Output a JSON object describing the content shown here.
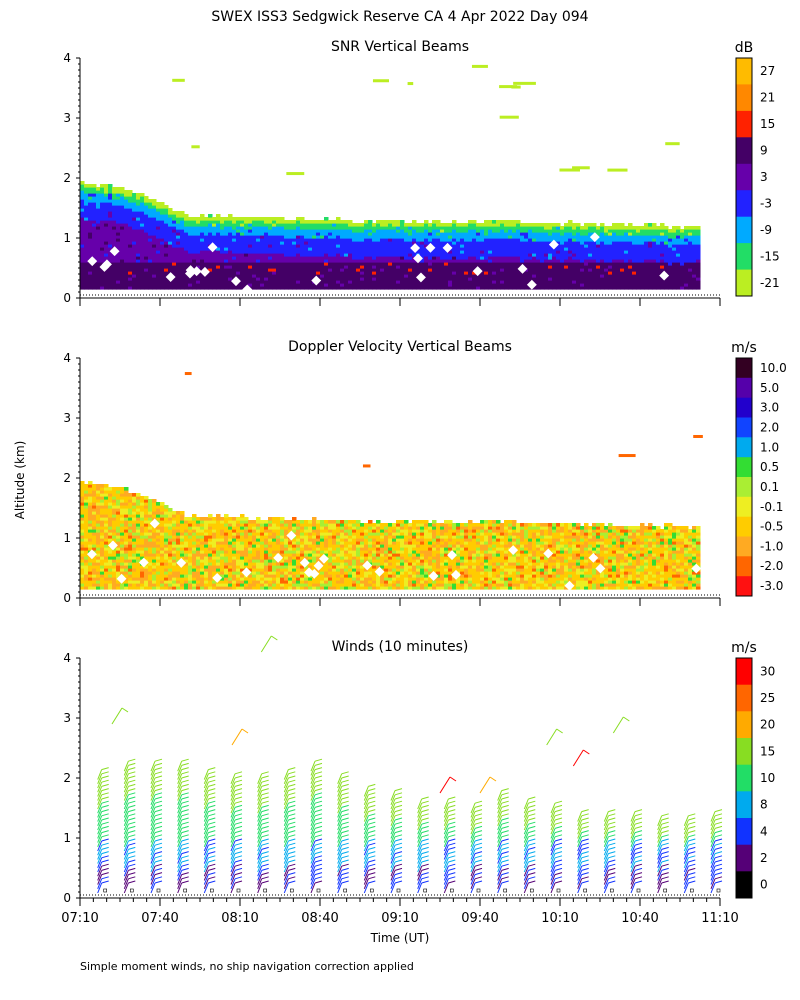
{
  "title": "SWEX ISS3 Sedgwick Reserve CA   4 Apr 2022 Day 094",
  "ylabel": "Altitude (km)",
  "xlabel": "Time (UT)",
  "footnote": "Simple moment winds, no ship navigation correction applied",
  "x_ticks": [
    "07:10",
    "07:40",
    "08:10",
    "08:40",
    "09:10",
    "09:40",
    "10:10",
    "10:40",
    "11:10"
  ],
  "y_ticks": [
    "0",
    "1",
    "2",
    "3",
    "4"
  ],
  "chart_data": [
    {
      "type": "heatmap",
      "title": "SNR Vertical Beams",
      "colorbar_unit": "dB",
      "colorbar_labels": [
        "27",
        "21",
        "15",
        "9",
        "3",
        "-3",
        "-9",
        "-15",
        "-21"
      ],
      "colorbar_colors": [
        "#ffbb00",
        "#ff8800",
        "#ff2200",
        "#440066",
        "#6600aa",
        "#2222ff",
        "#00aaff",
        "#22dd66",
        "#bbee22"
      ],
      "xlim": [
        "07:10",
        "11:10"
      ],
      "ylim": [
        0,
        4
      ],
      "top_km": [
        [
          0,
          1.9
        ],
        [
          10,
          1.85
        ],
        [
          20,
          1.75
        ],
        [
          40,
          1.35
        ],
        [
          80,
          1.3
        ],
        [
          120,
          1.25
        ],
        [
          160,
          1.25
        ],
        [
          200,
          1.2
        ],
        [
          240,
          1.15
        ]
      ],
      "regions": [
        {
          "layer": "-21 to -15",
          "top_offset_km": 0.0
        },
        {
          "layer": "-15 to -9",
          "top_offset_km": -0.08
        },
        {
          "layer": "-9 to -3",
          "top_offset_km": -0.2
        },
        {
          "layer": "-3 to 3",
          "top_offset_km": -0.35
        },
        {
          "layer": "3 to 9",
          "top_offset_km": -0.75
        },
        {
          "layer": "9 to 15",
          "top_offset_km": -0.95
        }
      ]
    },
    {
      "type": "heatmap",
      "title": "Doppler Velocity Vertical Beams",
      "colorbar_unit": "m/s",
      "colorbar_labels": [
        "10.0",
        "5.0",
        "3.0",
        "2.0",
        "1.0",
        "0.5",
        "0.1",
        "-0.1",
        "-0.5",
        "-1.0",
        "-2.0",
        "-3.0"
      ],
      "colorbar_colors": [
        "#330022",
        "#5500aa",
        "#2200cc",
        "#1144ff",
        "#00aaee",
        "#33dd33",
        "#aaee33",
        "#eeee22",
        "#ffcc00",
        "#ffaa22",
        "#ff6600",
        "#ff1111"
      ],
      "xlim": [
        "07:10",
        "11:10"
      ],
      "ylim": [
        0,
        4
      ],
      "top_km": [
        [
          0,
          1.9
        ],
        [
          10,
          1.85
        ],
        [
          20,
          1.75
        ],
        [
          40,
          1.35
        ],
        [
          80,
          1.3
        ],
        [
          120,
          1.25
        ],
        [
          160,
          1.25
        ],
        [
          200,
          1.2
        ],
        [
          240,
          1.15
        ]
      ],
      "dominant_values": [
        "-0.5",
        "-1.0",
        "0.1",
        "-0.1"
      ]
    },
    {
      "type": "scatter",
      "title": "Winds (10 minutes)",
      "colorbar_unit": "m/s",
      "colorbar_labels": [
        "30",
        "25",
        "20",
        "15",
        "10",
        "8",
        "4",
        "2",
        "0"
      ],
      "colorbar_colors": [
        "#ff0000",
        "#ff6600",
        "#ffaa00",
        "#88dd22",
        "#22dd66",
        "#00aaee",
        "#1133ff",
        "#550077",
        "#000000"
      ],
      "xlim": [
        "07:10",
        "11:10"
      ],
      "ylim": [
        0,
        4
      ],
      "profile_times_min": [
        10,
        20,
        30,
        40,
        50,
        60,
        70,
        80,
        90,
        100,
        110,
        120,
        130,
        140,
        150,
        160,
        170,
        180,
        190,
        200,
        210,
        220,
        230,
        240
      ],
      "profile_tops_km": [
        2.2,
        2.3,
        2.3,
        2.3,
        2.2,
        2.1,
        2.1,
        2.2,
        2.3,
        2.1,
        1.9,
        1.8,
        1.7,
        1.7,
        1.6,
        1.8,
        1.7,
        1.6,
        1.5,
        1.5,
        1.5,
        1.4,
        1.4,
        1.5
      ],
      "isolated_barbs": [
        {
          "t_min": 12,
          "alt_km": 2.9,
          "speed": 15
        },
        {
          "t_min": 57,
          "alt_km": 2.55,
          "speed": 22
        },
        {
          "t_min": 68,
          "alt_km": 4.1,
          "speed": 15
        },
        {
          "t_min": 135,
          "alt_km": 1.75,
          "speed": 30
        },
        {
          "t_min": 150,
          "alt_km": 1.75,
          "speed": 22
        },
        {
          "t_min": 175,
          "alt_km": 2.55,
          "speed": 18
        },
        {
          "t_min": 185,
          "alt_km": 2.2,
          "speed": 30
        },
        {
          "t_min": 200,
          "alt_km": 2.75,
          "speed": 16
        }
      ]
    }
  ]
}
